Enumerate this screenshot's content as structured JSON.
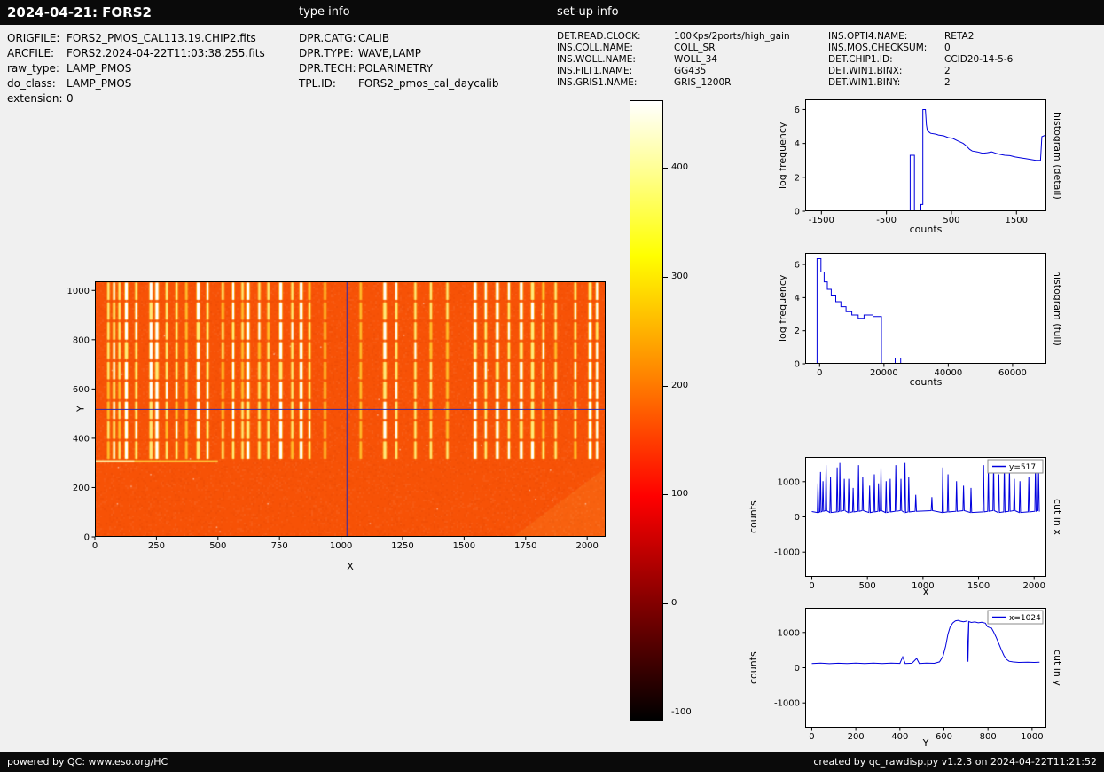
{
  "header": {
    "title": "2024-04-21: FORS2"
  },
  "type_info": {
    "heading": "type info",
    "rows": [
      {
        "label": "DPR.CATG:",
        "value": "CALIB"
      },
      {
        "label": "DPR.TYPE:",
        "value": "WAVE,LAMP"
      },
      {
        "label": "DPR.TECH:",
        "value": "POLARIMETRY"
      },
      {
        "label": "TPL.ID:",
        "value": "FORS2_pmos_cal_daycalib"
      }
    ]
  },
  "file_info": {
    "rows": [
      {
        "label": "ORIGFILE:",
        "value": "FORS2_PMOS_CAL113.19.CHIP2.fits"
      },
      {
        "label": "ARCFILE:",
        "value": "FORS2.2024-04-22T11:03:38.255.fits"
      },
      {
        "label": "raw_type:",
        "value": "LAMP_PMOS"
      },
      {
        "label": "do_class:",
        "value": "LAMP_PMOS"
      },
      {
        "label": "extension:",
        "value": "0"
      }
    ]
  },
  "setup_info": {
    "heading": "set-up info",
    "col1": [
      {
        "label": "DET.READ.CLOCK:",
        "value": "100Kps/2ports/high_gain"
      },
      {
        "label": "INS.COLL.NAME:",
        "value": "COLL_SR"
      },
      {
        "label": "INS.WOLL.NAME:",
        "value": "WOLL_34"
      },
      {
        "label": "INS.FILT1.NAME:",
        "value": "GG435"
      },
      {
        "label": "INS.GRIS1.NAME:",
        "value": "GRIS_1200R"
      }
    ],
    "col2": [
      {
        "label": "INS.OPTI4.NAME:",
        "value": "RETA2"
      },
      {
        "label": "INS.MOS.CHECKSUM:",
        "value": "0"
      },
      {
        "label": "DET.CHIP1.ID:",
        "value": "CCID20-14-5-6"
      },
      {
        "label": "DET.WIN1.BINX:",
        "value": "2"
      },
      {
        "label": "DET.WIN1.BINY:",
        "value": "2"
      }
    ]
  },
  "footer": {
    "left": "powered by QC: www.eso.org/HC",
    "right": "created by qc_rawdisp.py v1.2.3 on 2024-04-22T11:21:52"
  },
  "colors": {
    "page_bg": "#f0f0f0",
    "bar_bg": "#0a0a0a",
    "plot_line": "#0000dd",
    "crosshair": "#2929b0",
    "raster_base": "#f75206"
  },
  "colorbar": {
    "vmin": -106,
    "vmax": 462,
    "ticks": [
      400,
      300,
      200,
      100,
      0,
      -100
    ],
    "stops": [
      {
        "c": "#ffffff",
        "p": 0
      },
      {
        "c": "#ffff8a",
        "p": 12
      },
      {
        "c": "#ffff00",
        "p": 25
      },
      {
        "c": "#ff8000",
        "p": 45
      },
      {
        "c": "#ff0000",
        "p": 64
      },
      {
        "c": "#7d0000",
        "p": 82
      },
      {
        "c": "#000000",
        "p": 100
      }
    ]
  },
  "chart_data": [
    {
      "id": "main-image",
      "dom": "plot-main",
      "type": "heatmap",
      "xlabel": "X",
      "ylabel": "Y",
      "xlim": [
        0,
        2075
      ],
      "ylim": [
        0,
        1037
      ],
      "xticks": [
        0,
        250,
        500,
        750,
        1000,
        1250,
        1500,
        1750,
        2000
      ],
      "yticks": [
        0,
        200,
        400,
        600,
        800,
        1000
      ],
      "background_counts": 200,
      "crosshair": {
        "x": 1024,
        "y": 517
      },
      "illuminated_y": [
        312,
        1037
      ],
      "strip_count": 9,
      "hline": {
        "y": 307,
        "x_from": 0,
        "x_to": 500
      },
      "lines": [
        {
          "x": 55,
          "i": 0.5
        },
        {
          "x": 78,
          "i": 0.75
        },
        {
          "x": 100,
          "i": 0.55
        },
        {
          "x": 128,
          "i": 0.9
        },
        {
          "x": 168,
          "i": 0.65
        },
        {
          "x": 228,
          "i": 0.85
        },
        {
          "x": 252,
          "i": 0.95
        },
        {
          "x": 292,
          "i": 0.6
        },
        {
          "x": 332,
          "i": 0.6
        },
        {
          "x": 372,
          "i": 0.4
        },
        {
          "x": 420,
          "i": 0.9
        },
        {
          "x": 458,
          "i": 0.65
        },
        {
          "x": 520,
          "i": 0.45
        },
        {
          "x": 562,
          "i": 0.7
        },
        {
          "x": 600,
          "i": 0.5
        },
        {
          "x": 622,
          "i": 0.85
        },
        {
          "x": 668,
          "i": 0.55
        },
        {
          "x": 705,
          "i": 0.6
        },
        {
          "x": 755,
          "i": 0.9
        },
        {
          "x": 802,
          "i": 0.6
        },
        {
          "x": 838,
          "i": 0.95
        },
        {
          "x": 872,
          "i": 0.65
        },
        {
          "x": 935,
          "i": 0.25
        },
        {
          "x": 1080,
          "i": 0.2
        },
        {
          "x": 1178,
          "i": 0.85
        },
        {
          "x": 1225,
          "i": 0.7
        },
        {
          "x": 1302,
          "i": 0.55
        },
        {
          "x": 1365,
          "i": 0.45
        },
        {
          "x": 1432,
          "i": 0.4
        },
        {
          "x": 1545,
          "i": 0.9
        },
        {
          "x": 1588,
          "i": 0.8
        },
        {
          "x": 1635,
          "i": 0.95
        },
        {
          "x": 1682,
          "i": 0.7
        },
        {
          "x": 1732,
          "i": 0.95
        },
        {
          "x": 1778,
          "i": 0.85
        },
        {
          "x": 1822,
          "i": 0.6
        },
        {
          "x": 1872,
          "i": 0.55
        },
        {
          "x": 1952,
          "i": 0.65
        },
        {
          "x": 2012,
          "i": 0.9
        },
        {
          "x": 2040,
          "i": 0.8
        }
      ]
    },
    {
      "id": "hist-detail",
      "dom": "plot-hist-detail",
      "type": "line",
      "xlabel": "counts",
      "ylabel": "log frequency",
      "right_label": "histogram (detail)",
      "xlim": [
        -1750,
        1960
      ],
      "ylim": [
        0,
        6.6
      ],
      "xticks": [
        -1500,
        -500,
        500,
        1500
      ],
      "yticks": [
        0,
        2,
        4,
        6
      ],
      "points": [
        [
          -1700,
          0
        ],
        [
          -135,
          0
        ],
        [
          -135,
          3.3
        ],
        [
          -70,
          3.3
        ],
        [
          -70,
          0
        ],
        [
          30,
          0
        ],
        [
          30,
          0.4
        ],
        [
          60,
          0.4
        ],
        [
          60,
          6.0
        ],
        [
          100,
          6.0
        ],
        [
          115,
          5.1
        ],
        [
          130,
          4.75
        ],
        [
          180,
          4.6
        ],
        [
          260,
          4.55
        ],
        [
          300,
          4.5
        ],
        [
          380,
          4.45
        ],
        [
          450,
          4.35
        ],
        [
          520,
          4.3
        ],
        [
          600,
          4.15
        ],
        [
          680,
          4.0
        ],
        [
          730,
          3.85
        ],
        [
          780,
          3.65
        ],
        [
          820,
          3.55
        ],
        [
          900,
          3.5
        ],
        [
          980,
          3.42
        ],
        [
          1050,
          3.45
        ],
        [
          1120,
          3.5
        ],
        [
          1180,
          3.42
        ],
        [
          1250,
          3.35
        ],
        [
          1320,
          3.3
        ],
        [
          1400,
          3.28
        ],
        [
          1480,
          3.2
        ],
        [
          1560,
          3.15
        ],
        [
          1640,
          3.1
        ],
        [
          1720,
          3.05
        ],
        [
          1800,
          3.0
        ],
        [
          1870,
          3.0
        ],
        [
          1890,
          4.4
        ],
        [
          1950,
          4.5
        ]
      ]
    },
    {
      "id": "hist-full",
      "dom": "plot-hist-full",
      "type": "line",
      "xlabel": "counts",
      "ylabel": "log frequency",
      "right_label": "histogram (full)",
      "xlim": [
        -4500,
        70500
      ],
      "ylim": [
        0,
        6.7
      ],
      "xticks": [
        0,
        20000,
        40000,
        60000
      ],
      "yticks": [
        0,
        2,
        4,
        6
      ],
      "points": [
        [
          -3000,
          0
        ],
        [
          -800,
          0
        ],
        [
          -800,
          6.35
        ],
        [
          400,
          6.35
        ],
        [
          400,
          5.55
        ],
        [
          1400,
          5.55
        ],
        [
          1400,
          4.95
        ],
        [
          2400,
          4.95
        ],
        [
          2400,
          4.5
        ],
        [
          3600,
          4.5
        ],
        [
          3600,
          4.1
        ],
        [
          5000,
          4.1
        ],
        [
          5000,
          3.75
        ],
        [
          6600,
          3.75
        ],
        [
          6600,
          3.45
        ],
        [
          8200,
          3.45
        ],
        [
          8200,
          3.15
        ],
        [
          10000,
          3.15
        ],
        [
          10000,
          2.95
        ],
        [
          12000,
          2.95
        ],
        [
          12000,
          2.75
        ],
        [
          13800,
          2.75
        ],
        [
          13800,
          2.95
        ],
        [
          16600,
          2.95
        ],
        [
          16600,
          2.85
        ],
        [
          19200,
          2.85
        ],
        [
          19200,
          0
        ],
        [
          23500,
          0
        ],
        [
          23500,
          0.35
        ],
        [
          25200,
          0.35
        ],
        [
          25200,
          0
        ],
        [
          69000,
          0
        ]
      ]
    },
    {
      "id": "cut-x",
      "dom": "plot-cut-x",
      "type": "line",
      "xlabel": "X",
      "ylabel": "counts",
      "right_label": "cut in x",
      "legend": "y=517",
      "xlim": [
        -60,
        2110
      ],
      "ylim": [
        -1700,
        1700
      ],
      "xticks": [
        0,
        500,
        1000,
        1500,
        2000
      ],
      "yticks": [
        -1000,
        0,
        1000
      ],
      "points_from_lines": {
        "baseline": 150,
        "peak_base": 300,
        "peak_scale": 1300
      }
    },
    {
      "id": "cut-y",
      "dom": "plot-cut-y",
      "type": "line",
      "xlabel": "Y",
      "ylabel": "counts",
      "right_label": "cut in y",
      "legend": "x=1024",
      "xlim": [
        -30,
        1065
      ],
      "ylim": [
        -1700,
        1700
      ],
      "xticks": [
        0,
        200,
        400,
        600,
        800,
        1000
      ],
      "yticks": [
        -1000,
        0,
        1000
      ],
      "points": [
        [
          0,
          120
        ],
        [
          40,
          130
        ],
        [
          80,
          115
        ],
        [
          120,
          128
        ],
        [
          160,
          118
        ],
        [
          200,
          130
        ],
        [
          240,
          120
        ],
        [
          280,
          132
        ],
        [
          320,
          122
        ],
        [
          360,
          130
        ],
        [
          400,
          124
        ],
        [
          413,
          310
        ],
        [
          424,
          120
        ],
        [
          455,
          128
        ],
        [
          476,
          265
        ],
        [
          488,
          122
        ],
        [
          520,
          130
        ],
        [
          556,
          126
        ],
        [
          580,
          165
        ],
        [
          596,
          330
        ],
        [
          608,
          620
        ],
        [
          618,
          950
        ],
        [
          628,
          1150
        ],
        [
          640,
          1270
        ],
        [
          652,
          1330
        ],
        [
          664,
          1345
        ],
        [
          676,
          1320
        ],
        [
          688,
          1305
        ],
        [
          698,
          1315
        ],
        [
          705,
          1330
        ],
        [
          709,
          170
        ],
        [
          713,
          1310
        ],
        [
          724,
          1285
        ],
        [
          740,
          1300
        ],
        [
          756,
          1275
        ],
        [
          772,
          1290
        ],
        [
          788,
          1265
        ],
        [
          798,
          1160
        ],
        [
          806,
          1140
        ],
        [
          816,
          1125
        ],
        [
          826,
          1010
        ],
        [
          836,
          880
        ],
        [
          848,
          700
        ],
        [
          860,
          520
        ],
        [
          872,
          350
        ],
        [
          884,
          240
        ],
        [
          896,
          185
        ],
        [
          912,
          165
        ],
        [
          940,
          152
        ],
        [
          980,
          158
        ],
        [
          1010,
          150
        ],
        [
          1034,
          158
        ]
      ]
    }
  ]
}
